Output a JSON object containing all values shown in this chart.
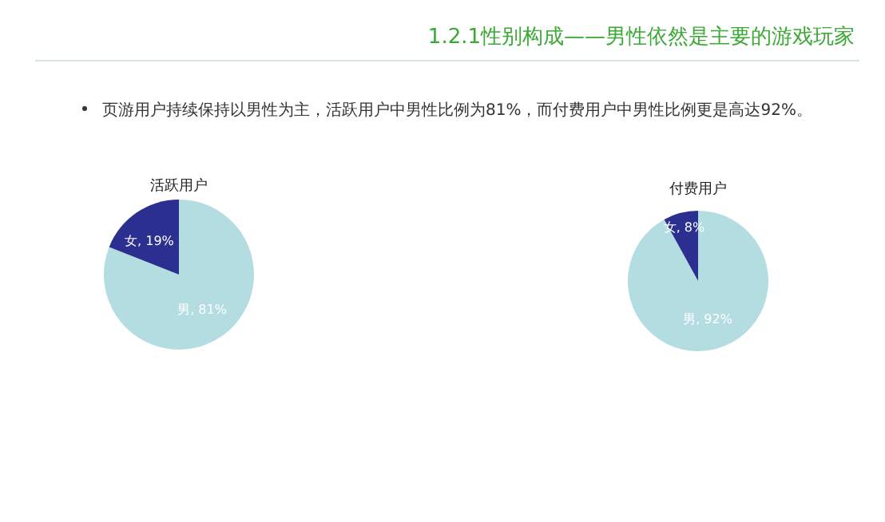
{
  "chart_data": [
    {
      "type": "other",
      "title": "1.2.1性别构成——男性依然是主要的游戏玩家",
      "annotations": [
        "页游用户持续保持以男性为主，活跃用户中男性比例为81%，而付费用户中男性比例更是高达92%。"
      ]
    },
    {
      "type": "pie",
      "title": "活跃用户",
      "categories": [
        "男",
        "女"
      ],
      "values": [
        81,
        19
      ],
      "colors": [
        "#b4dde1",
        "#2b2f8f"
      ],
      "value_labels": [
        ", 81%",
        ", 19%"
      ]
    },
    {
      "type": "pie",
      "title": "付费用户",
      "categories": [
        "男",
        "女"
      ],
      "values": [
        92,
        8
      ],
      "colors": [
        "#b4dde1",
        "#2b2f8f"
      ],
      "value_labels": [
        ", 92%",
        ", 8%"
      ]
    }
  ]
}
